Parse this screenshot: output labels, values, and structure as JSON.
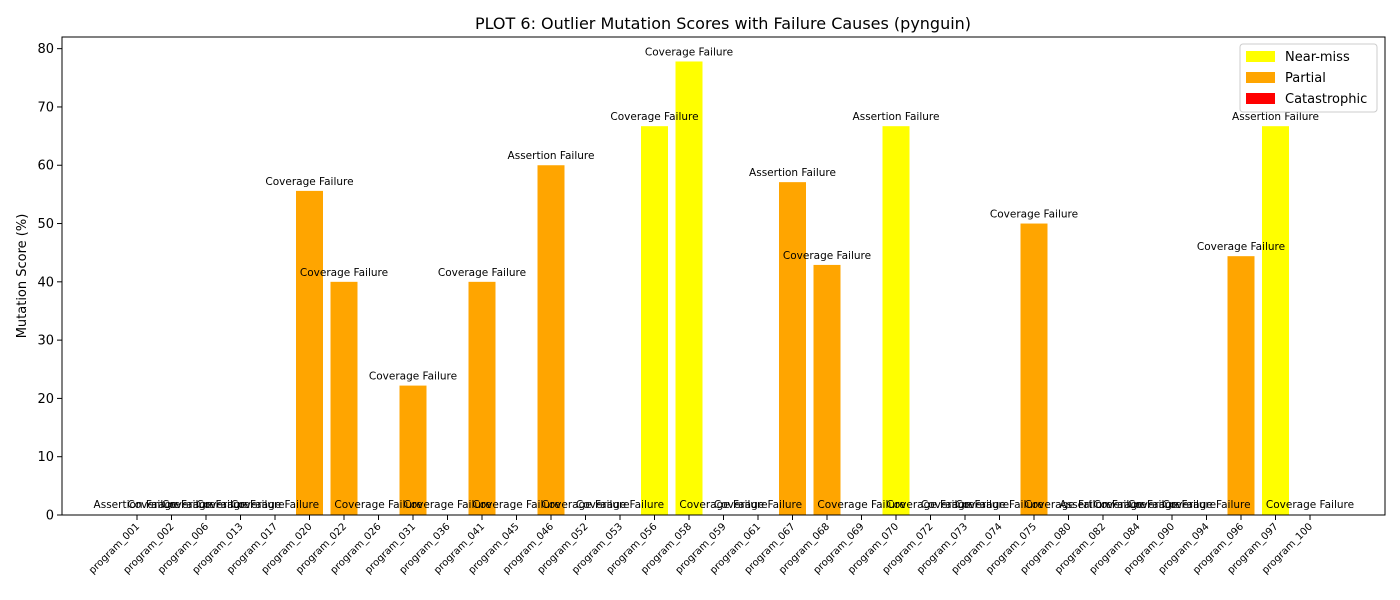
{
  "chart_data": {
    "type": "bar",
    "title": "PLOT 6: Outlier Mutation Scores with Failure Causes (pynguin)",
    "xlabel": "",
    "ylabel": "Mutation Score (%)",
    "ylim": [
      0,
      82
    ],
    "yticks": [
      0,
      10,
      20,
      30,
      40,
      50,
      60,
      70,
      80
    ],
    "legend_position": "top-right",
    "legend": [
      {
        "label": "Near-miss",
        "color": "#ffff00"
      },
      {
        "label": "Partial",
        "color": "#ffa500"
      },
      {
        "label": "Catastrophic",
        "color": "#ff0000"
      }
    ],
    "categories": [
      "program_001",
      "program_002",
      "program_006",
      "program_013",
      "program_017",
      "program_020",
      "program_022",
      "program_026",
      "program_031",
      "program_036",
      "program_041",
      "program_045",
      "program_046",
      "program_052",
      "program_053",
      "program_056",
      "program_058",
      "program_059",
      "program_061",
      "program_067",
      "program_068",
      "program_069",
      "program_070",
      "program_072",
      "program_073",
      "program_074",
      "program_075",
      "program_080",
      "program_082",
      "program_084",
      "program_090",
      "program_094",
      "program_096",
      "program_097",
      "program_100"
    ],
    "values": [
      0,
      0,
      0,
      0,
      0,
      55.6,
      40.0,
      0,
      22.2,
      0,
      40.0,
      0,
      60.0,
      0,
      0,
      66.7,
      77.8,
      0,
      0,
      57.1,
      42.9,
      0,
      66.7,
      0,
      0,
      0,
      50.0,
      0,
      0,
      0,
      0,
      0,
      44.4,
      66.7,
      0
    ],
    "categories_of_failure": [
      "Catastrophic",
      "Catastrophic",
      "Catastrophic",
      "Catastrophic",
      "Catastrophic",
      "Partial",
      "Partial",
      "Catastrophic",
      "Partial",
      "Catastrophic",
      "Partial",
      "Catastrophic",
      "Partial",
      "Catastrophic",
      "Catastrophic",
      "Near-miss",
      "Near-miss",
      "Catastrophic",
      "Catastrophic",
      "Partial",
      "Partial",
      "Catastrophic",
      "Near-miss",
      "Catastrophic",
      "Catastrophic",
      "Catastrophic",
      "Partial",
      "Catastrophic",
      "Catastrophic",
      "Catastrophic",
      "Catastrophic",
      "Catastrophic",
      "Partial",
      "Near-miss",
      "Catastrophic"
    ],
    "annotations": [
      "Assertion Failure",
      "Coverage Failure",
      "Coverage Failure",
      "Coverage Failure",
      "Coverage Failure",
      "Coverage Failure",
      "Coverage Failure",
      "Coverage Failure",
      "Coverage Failure",
      "Coverage Failure",
      "Coverage Failure",
      "Coverage Failure",
      "Assertion Failure",
      "Coverage Failure",
      "Coverage Failure",
      "Coverage Failure",
      "Coverage Failure",
      "Coverage Failure",
      "Coverage Failure",
      "Assertion Failure",
      "Coverage Failure",
      "Coverage Failure",
      "Assertion Failure",
      "Coverage Failure",
      "Coverage Failure",
      "Coverage Failure",
      "Coverage Failure",
      "Coverage Failure",
      "Assertion Failure",
      "Coverage Failure",
      "Coverage Failure",
      "Coverage Failure",
      "Coverage Failure",
      "Assertion Failure",
      "Coverage Failure"
    ]
  }
}
